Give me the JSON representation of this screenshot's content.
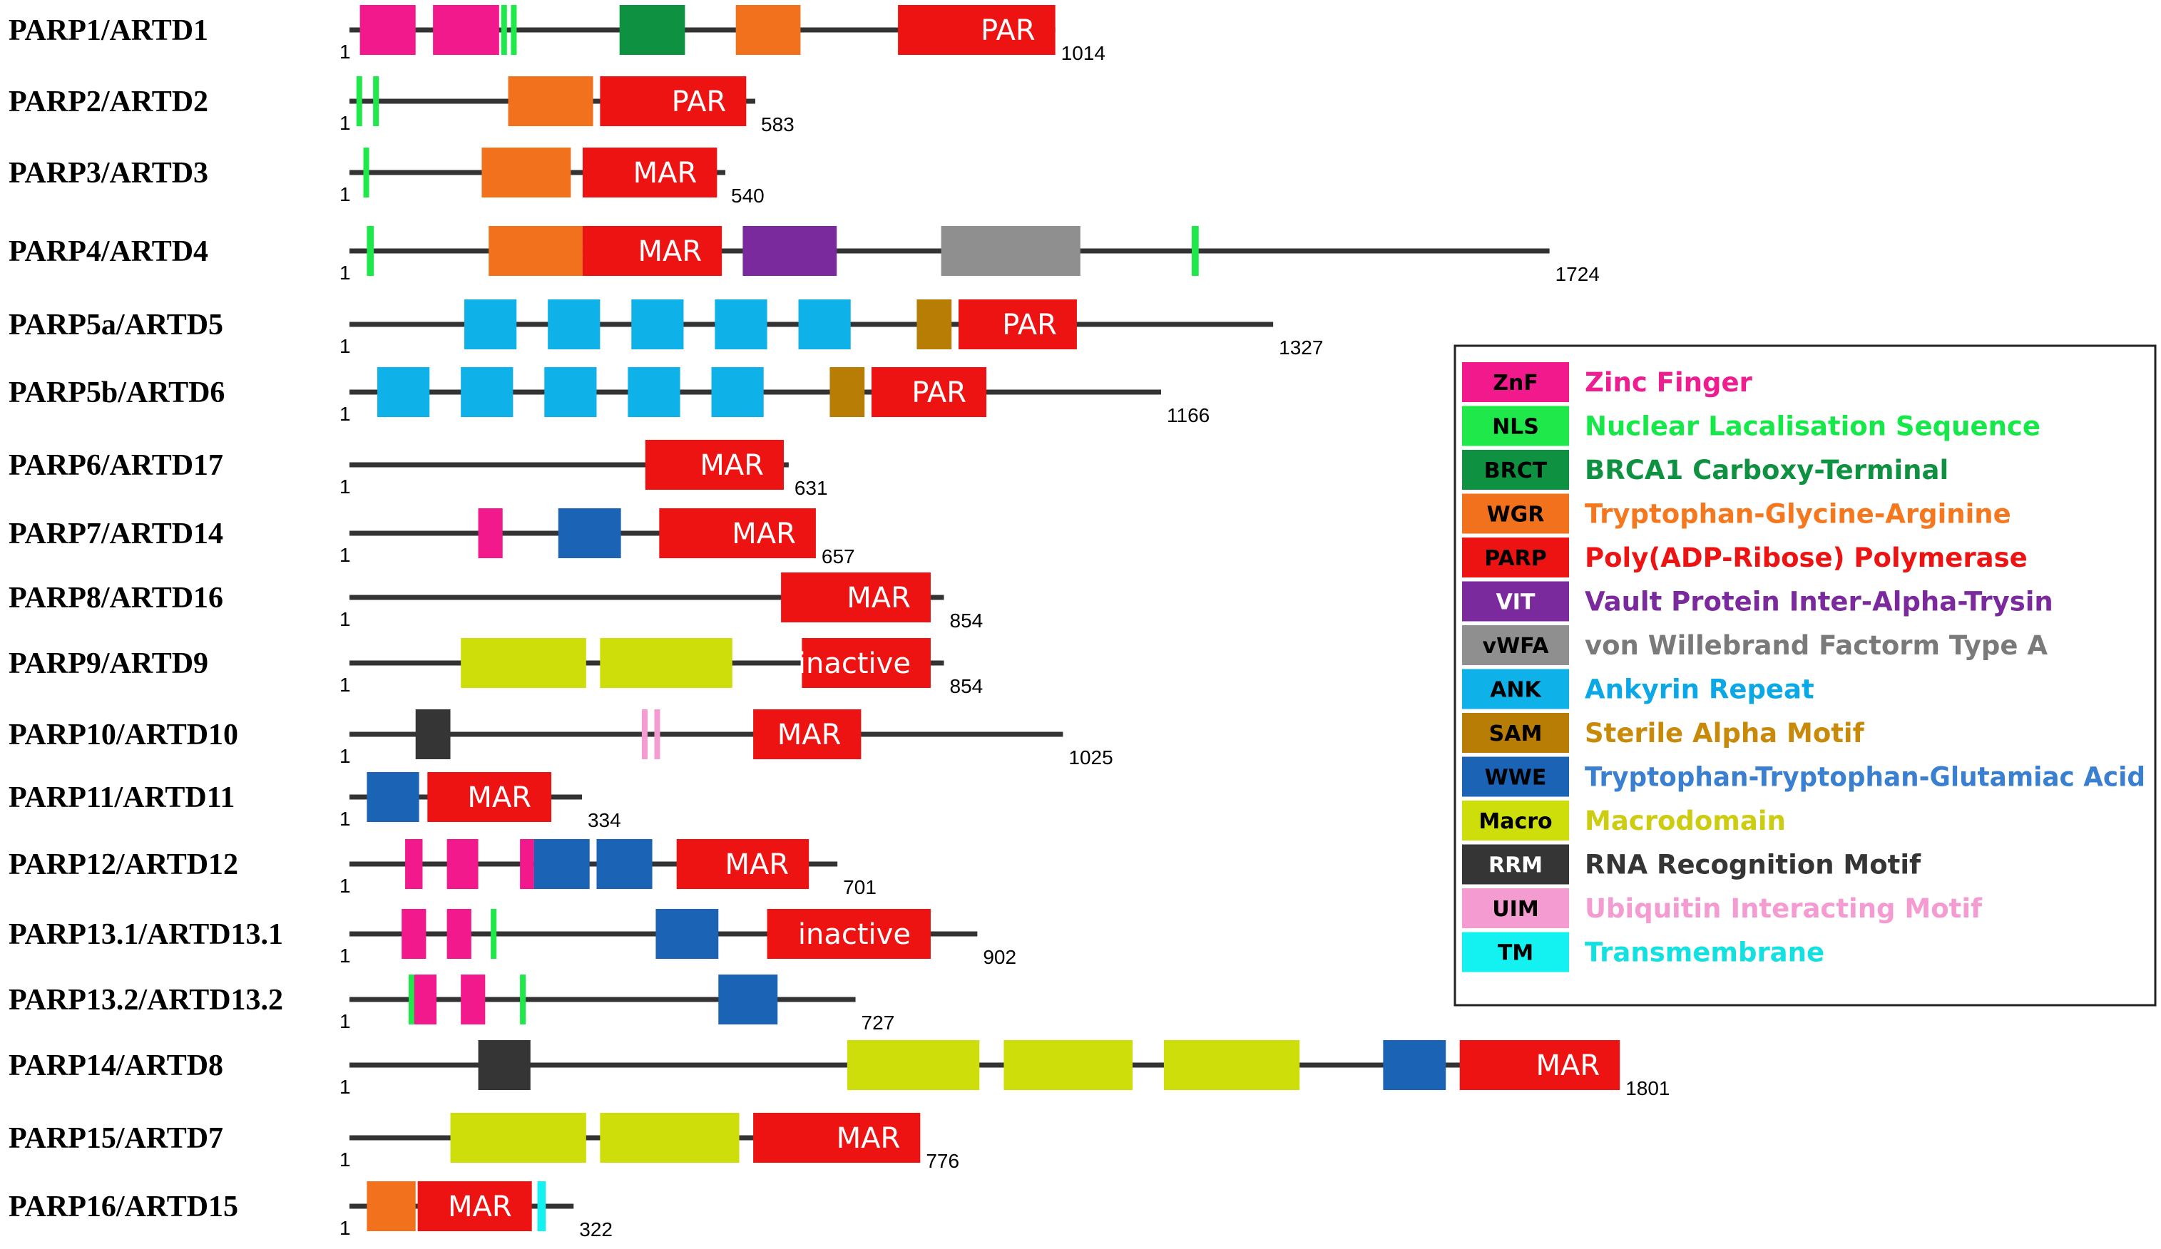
{
  "domain_types": {
    "ZnF": {
      "color": "#f2198c"
    },
    "NLS": {
      "color": "#1ee84a"
    },
    "BRCT": {
      "color": "#0e9140"
    },
    "WGR": {
      "color": "#f2711d"
    },
    "PARP": {
      "color": "#ee1313"
    },
    "VIT": {
      "color": "#7b2a9e"
    },
    "vWFA": {
      "color": "#8f8f8f"
    },
    "ANK": {
      "color": "#0fb2e8"
    },
    "SAM": {
      "color": "#b87d05"
    },
    "WWE": {
      "color": "#1a63b5"
    },
    "Macro": {
      "color": "#cede0b"
    },
    "RRM": {
      "color": "#353535"
    },
    "UIM": {
      "color": "#f49bd1"
    },
    "TM": {
      "color": "#13f1f1"
    }
  },
  "legend": {
    "items": [
      {
        "abbr": "ZnF",
        "desc": "Zinc Finger",
        "text_color": "#ee1e90",
        "abbr_color": "#000000"
      },
      {
        "abbr": "NLS",
        "desc": "Nuclear Lacalisation Sequence",
        "text_color": "#17e84a",
        "abbr_color": "#000000"
      },
      {
        "abbr": "BRCT",
        "desc": "BRCA1 Carboxy-Terminal",
        "text_color": "#0e9140",
        "abbr_color": "#000000"
      },
      {
        "abbr": "WGR",
        "desc": "Tryptophan-Glycine-Arginine",
        "text_color": "#f5781f",
        "abbr_color": "#000000"
      },
      {
        "abbr": "PARP",
        "desc": "Poly(ADP-Ribose) Polymerase",
        "text_color": "#ee1313",
        "abbr_color": "#000000"
      },
      {
        "abbr": "VIT",
        "desc": "Vault Protein Inter-Alpha-Trysin",
        "text_color": "#7b2a9e",
        "abbr_color": "#ffffff"
      },
      {
        "abbr": "vWFA",
        "desc": "von Willebrand Factorm Type A",
        "text_color": "#7a7a7a",
        "abbr_color": "#000000"
      },
      {
        "abbr": "ANK",
        "desc": "Ankyrin Repeat",
        "text_color": "#0aa8e6",
        "abbr_color": "#000000"
      },
      {
        "abbr": "SAM",
        "desc": "Sterile Alpha Motif",
        "text_color": "#c98a0a",
        "abbr_color": "#000000"
      },
      {
        "abbr": "WWE",
        "desc": "Tryptophan-Tryptophan-Glutamiac Acid",
        "text_color": "#3a7fd0",
        "abbr_color": "#000000"
      },
      {
        "abbr": "Macro",
        "desc": "Macrodomain",
        "text_color": "#cccc10",
        "abbr_color": "#000000"
      },
      {
        "abbr": "RRM",
        "desc": "RNA Recognition Motif",
        "text_color": "#353535",
        "abbr_color": "#ffffff"
      },
      {
        "abbr": "UIM",
        "desc": "Ubiquitin Interacting Motif",
        "text_color": "#f49bd1",
        "abbr_color": "#000000"
      },
      {
        "abbr": "TM",
        "desc": "Transmembrane",
        "text_color": "#13e0e0",
        "abbr_color": "#000000"
      }
    ]
  },
  "proteins": [
    {
      "name": "PARP1/ARTD1",
      "start": "1",
      "length": 1014,
      "length_label": "1014",
      "domains": [
        {
          "type": "ZnF",
          "s": 15,
          "e": 95
        },
        {
          "type": "ZnF",
          "s": 120,
          "e": 215
        },
        {
          "type": "NLS",
          "s": 218,
          "e": 224
        },
        {
          "type": "NLS",
          "s": 232,
          "e": 238
        },
        {
          "type": "BRCT",
          "s": 388,
          "e": 482
        },
        {
          "type": "WGR",
          "s": 555,
          "e": 648
        },
        {
          "type": "PARP",
          "s": 788,
          "e": 1014,
          "label": "PAR"
        }
      ]
    },
    {
      "name": "PARP2/ARTD2",
      "start": "1",
      "length": 583,
      "length_label": "583",
      "domains": [
        {
          "type": "NLS",
          "s": 10,
          "e": 17
        },
        {
          "type": "NLS",
          "s": 34,
          "e": 41
        },
        {
          "type": "WGR",
          "s": 228,
          "e": 350
        },
        {
          "type": "PARP",
          "s": 360,
          "e": 570,
          "label": "PAR"
        }
      ]
    },
    {
      "name": "PARP3/ARTD3",
      "start": "1",
      "length": 540,
      "length_label": "540",
      "domains": [
        {
          "type": "NLS",
          "s": 20,
          "e": 27
        },
        {
          "type": "WGR",
          "s": 190,
          "e": 318
        },
        {
          "type": "PARP",
          "s": 335,
          "e": 528,
          "label": "MAR"
        }
      ]
    },
    {
      "name": "PARP4/ARTD4",
      "start": "1",
      "length": 1724,
      "length_label": "1724",
      "domains": [
        {
          "type": "NLS",
          "s": 25,
          "e": 35
        },
        {
          "type": "WGR",
          "s": 200,
          "e": 335
        },
        {
          "type": "PARP",
          "s": 335,
          "e": 535,
          "label": "MAR"
        },
        {
          "type": "VIT",
          "s": 565,
          "e": 700
        },
        {
          "type": "vWFA",
          "s": 850,
          "e": 1050
        },
        {
          "type": "NLS",
          "s": 1210,
          "e": 1220
        }
      ]
    },
    {
      "name": "PARP5a/ARTD5",
      "start": "1",
      "length": 1327,
      "length_label": "1327",
      "domains": [
        {
          "type": "ANK",
          "s": 165,
          "e": 240
        },
        {
          "type": "ANK",
          "s": 285,
          "e": 360
        },
        {
          "type": "ANK",
          "s": 405,
          "e": 480
        },
        {
          "type": "ANK",
          "s": 525,
          "e": 600
        },
        {
          "type": "ANK",
          "s": 645,
          "e": 720
        },
        {
          "type": "SAM",
          "s": 815,
          "e": 865
        },
        {
          "type": "PARP",
          "s": 875,
          "e": 1045,
          "label": "PAR"
        }
      ]
    },
    {
      "name": "PARP5b/ARTD6",
      "start": "1",
      "length": 1166,
      "length_label": "1166",
      "domains": [
        {
          "type": "ANK",
          "s": 40,
          "e": 115
        },
        {
          "type": "ANK",
          "s": 160,
          "e": 235
        },
        {
          "type": "ANK",
          "s": 280,
          "e": 355
        },
        {
          "type": "ANK",
          "s": 400,
          "e": 475
        },
        {
          "type": "ANK",
          "s": 520,
          "e": 595
        },
        {
          "type": "SAM",
          "s": 690,
          "e": 740
        },
        {
          "type": "PARP",
          "s": 750,
          "e": 915,
          "label": "PAR"
        }
      ]
    },
    {
      "name": "PARP6/ARTD17",
      "start": "1",
      "length": 631,
      "length_label": "631",
      "domains": [
        {
          "type": "PARP",
          "s": 425,
          "e": 624,
          "label": "MAR"
        }
      ]
    },
    {
      "name": "PARP7/ARTD14",
      "start": "1",
      "length": 657,
      "length_label": "657",
      "domains": [
        {
          "type": "ZnF",
          "s": 185,
          "e": 220
        },
        {
          "type": "WWE",
          "s": 300,
          "e": 390
        },
        {
          "type": "PARP",
          "s": 445,
          "e": 670,
          "label": "MAR"
        }
      ]
    },
    {
      "name": "PARP8/ARTD16",
      "start": "1",
      "length": 854,
      "length_label": "854",
      "domains": [
        {
          "type": "PARP",
          "s": 620,
          "e": 835,
          "label": "MAR"
        }
      ]
    },
    {
      "name": "PARP9/ARTD9",
      "start": "1",
      "length": 854,
      "length_label": "854",
      "domains": [
        {
          "type": "Macro",
          "s": 160,
          "e": 340
        },
        {
          "type": "Macro",
          "s": 360,
          "e": 550
        },
        {
          "type": "PARP",
          "s": 650,
          "e": 835,
          "label": "inactive"
        }
      ]
    },
    {
      "name": "PARP10/ARTD10",
      "start": "1",
      "length": 1025,
      "length_label": "1025",
      "domains": [
        {
          "type": "RRM",
          "s": 95,
          "e": 145
        },
        {
          "type": "UIM",
          "s": 420,
          "e": 428
        },
        {
          "type": "UIM",
          "s": 438,
          "e": 446
        },
        {
          "type": "PARP",
          "s": 580,
          "e": 735,
          "label": "MAR"
        }
      ]
    },
    {
      "name": "PARP11/ARTD11",
      "start": "1",
      "length": 334,
      "length_label": "334",
      "domains": [
        {
          "type": "WWE",
          "s": 25,
          "e": 100
        },
        {
          "type": "PARP",
          "s": 112,
          "e": 290,
          "label": "MAR"
        }
      ]
    },
    {
      "name": "PARP12/ARTD12",
      "start": "1",
      "length": 701,
      "length_label": "701",
      "domains": [
        {
          "type": "ZnF",
          "s": 80,
          "e": 105
        },
        {
          "type": "ZnF",
          "s": 140,
          "e": 185
        },
        {
          "type": "ZnF",
          "s": 245,
          "e": 265
        },
        {
          "type": "WWE",
          "s": 265,
          "e": 345
        },
        {
          "type": "WWE",
          "s": 355,
          "e": 435
        },
        {
          "type": "PARP",
          "s": 470,
          "e": 660,
          "label": "MAR"
        }
      ]
    },
    {
      "name": "PARP13.1/ARTD13.1",
      "start": "1",
      "length": 902,
      "length_label": "902",
      "domains": [
        {
          "type": "ZnF",
          "s": 75,
          "e": 110
        },
        {
          "type": "ZnF",
          "s": 140,
          "e": 175
        },
        {
          "type": "NLS",
          "s": 203,
          "e": 211
        },
        {
          "type": "WWE",
          "s": 440,
          "e": 530
        },
        {
          "type": "PARP",
          "s": 600,
          "e": 835,
          "label": "inactive"
        }
      ]
    },
    {
      "name": "PARP13.2/ARTD13.2",
      "start": "1",
      "length": 727,
      "length_label": "727",
      "domains": [
        {
          "type": "NLS",
          "s": 85,
          "e": 93
        },
        {
          "type": "ZnF",
          "s": 93,
          "e": 125
        },
        {
          "type": "ZnF",
          "s": 160,
          "e": 195
        },
        {
          "type": "NLS",
          "s": 245,
          "e": 253
        },
        {
          "type": "WWE",
          "s": 530,
          "e": 615
        }
      ]
    },
    {
      "name": "PARP14/ARTD8",
      "start": "1",
      "length": 1801,
      "length_label": "1801",
      "domains": [
        {
          "type": "RRM",
          "s": 185,
          "e": 260
        },
        {
          "type": "Macro",
          "s": 715,
          "e": 905
        },
        {
          "type": "Macro",
          "s": 940,
          "e": 1125
        },
        {
          "type": "Macro",
          "s": 1170,
          "e": 1365
        },
        {
          "type": "WWE",
          "s": 1485,
          "e": 1575
        },
        {
          "type": "PARP",
          "s": 1595,
          "e": 1825,
          "label": "MAR"
        }
      ]
    },
    {
      "name": "PARP15/ARTD7",
      "start": "1",
      "length": 776,
      "length_label": "776",
      "domains": [
        {
          "type": "Macro",
          "s": 145,
          "e": 340
        },
        {
          "type": "Macro",
          "s": 360,
          "e": 560
        },
        {
          "type": "PARP",
          "s": 580,
          "e": 820,
          "label": "MAR"
        }
      ]
    },
    {
      "name": "PARP16/ARTD15",
      "start": "1",
      "length": 322,
      "length_label": "322",
      "domains": [
        {
          "type": "WGR",
          "s": 25,
          "e": 95
        },
        {
          "type": "PARP",
          "s": 98,
          "e": 262,
          "label": "MAR"
        },
        {
          "type": "TM",
          "s": 270,
          "e": 282
        }
      ]
    }
  ]
}
